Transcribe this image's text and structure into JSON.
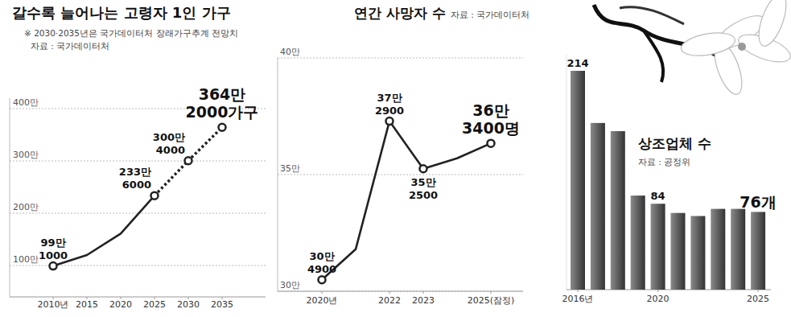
{
  "chart_data": [
    {
      "type": "line",
      "title": "갈수록 늘어나는 고령자 1인 가구",
      "subtitle": "※ 2030·2035년은 국가데이터처 장래가구추계 전망치",
      "source": "자료 : 국가데이터처",
      "categories": [
        "2010년",
        "2015",
        "2020",
        "2025",
        "2030",
        "2035"
      ],
      "series": [
        {
          "color": "#222222",
          "line_style": "solid",
          "values": [
            99.1,
            120,
            161,
            233.6,
            null,
            null
          ],
          "value_labels": [
            "99만\n1000",
            null,
            null,
            "233만\n6000",
            null,
            null
          ]
        },
        {
          "color": "#222222",
          "line_style": "dashed",
          "values": [
            null,
            null,
            null,
            233.6,
            300.4,
            364.2
          ],
          "value_labels": [
            null,
            null,
            null,
            null,
            "300만\n4000",
            "364만\n2000가구"
          ]
        }
      ],
      "ylim": [
        40,
        420
      ],
      "yticks": [
        {
          "value": 100,
          "label": "100만"
        },
        {
          "value": 200,
          "label": "200만"
        },
        {
          "value": 300,
          "label": "300만"
        },
        {
          "value": 400,
          "label": "400만"
        }
      ],
      "grid": true,
      "marker": "circle",
      "data_labels": true
    },
    {
      "type": "line",
      "title": "연간 사망자 수",
      "source": "자료 : 국가데이터처",
      "categories": [
        "2020년",
        null,
        "2022",
        "2023",
        null,
        "2025(잠정)"
      ],
      "values": [
        30.49,
        31.8,
        37.29,
        35.25,
        35.7,
        36.34
      ],
      "value_labels": [
        "30만\n4900",
        null,
        "37만\n2900",
        "35만\n2500",
        null,
        "36만\n3400명"
      ],
      "color": "#222222",
      "line_style": "solid",
      "ylim": [
        30,
        40
      ],
      "yticks": [
        {
          "value": 30,
          "label": "30만"
        },
        {
          "value": 35,
          "label": "35만"
        },
        {
          "value": 40,
          "label": "40만"
        }
      ],
      "grid": true,
      "marker": "circle",
      "data_labels": true
    },
    {
      "type": "bar",
      "title": "상조업체 수",
      "source": "자료 : 공정위",
      "categories": [
        "2016년",
        null,
        null,
        null,
        "2020",
        null,
        null,
        null,
        null,
        "2025"
      ],
      "values": [
        214,
        163,
        155,
        92,
        84,
        75,
        72,
        79,
        79,
        76
      ],
      "value_labels": [
        "214",
        null,
        null,
        null,
        "84",
        null,
        null,
        null,
        null,
        "76개"
      ],
      "color": "#333333",
      "ylim": [
        0,
        230
      ],
      "tick_labels": "x",
      "grid": false,
      "data_labels": true
    }
  ]
}
